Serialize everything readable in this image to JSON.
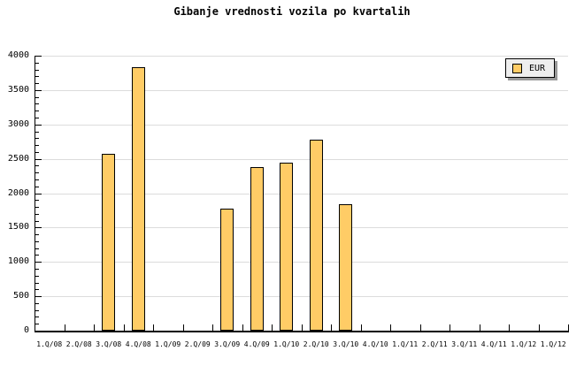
{
  "title": "Gibanje vrednosti vozila po kvartalih",
  "legend": {
    "label": "EUR"
  },
  "colors": {
    "background": "#ffffff",
    "bar_fill": "#ffcc66",
    "bar_border": "#000000",
    "grid": "#dcdcdc",
    "axis": "#000000",
    "text": "#000000",
    "legend_bg": "#eeeeee",
    "legend_shadow": "#999999"
  },
  "chart_data": {
    "type": "bar",
    "title": "Gibanje vrednosti vozila po kvartalih",
    "xlabel": "",
    "ylabel": "",
    "categories": [
      "1.Q/08",
      "2.Q/08",
      "3.Q/08",
      "4.Q/08",
      "1.Q/09",
      "2.Q/09",
      "3.Q/09",
      "4.Q/09",
      "1.Q/10",
      "2.Q/10",
      "3.Q/10",
      "4.Q/10",
      "1.Q/11",
      "2.Q/11",
      "3.Q/11",
      "4.Q/11",
      "1.Q/12",
      "1.Q/12"
    ],
    "series": [
      {
        "name": "EUR",
        "values": [
          null,
          null,
          2570,
          3830,
          null,
          null,
          1780,
          2380,
          2450,
          2780,
          1840,
          null,
          null,
          null,
          null,
          null,
          null,
          null
        ]
      }
    ],
    "ylim": [
      0,
      4000
    ],
    "yticks": [
      0,
      500,
      1000,
      1500,
      2000,
      2500,
      3000,
      3500,
      4000
    ],
    "y_minor_tick_interval": 100,
    "grid": "horizontal",
    "legend_position": "top-right"
  }
}
